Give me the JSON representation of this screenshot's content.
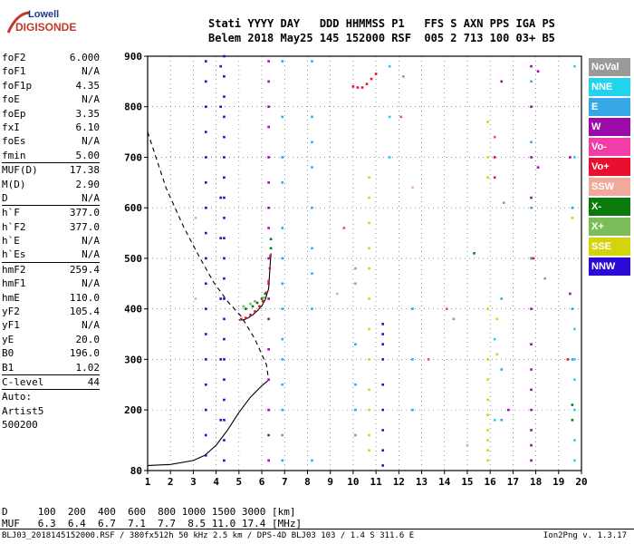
{
  "logo": {
    "line1": "Lowell",
    "line2": "DIGISONDE"
  },
  "header": {
    "line1": "Stati YYYY DAY   DDD HHMMSS P1   FFS S AXN PPS IGA PS",
    "line2": "Belem 2018 May25 145 152000 RSF  005 2 713 100 03+ B5"
  },
  "params": [
    {
      "k": "foF2",
      "v": "6.000"
    },
    {
      "k": "foF1",
      "v": "N/A"
    },
    {
      "k": "foF1p",
      "v": "4.35"
    },
    {
      "k": "foE",
      "v": "N/A"
    },
    {
      "k": "foEp",
      "v": "3.35"
    },
    {
      "k": "fxI",
      "v": "6.10"
    },
    {
      "k": "foEs",
      "v": "N/A"
    },
    {
      "k": "fmin",
      "v": "5.00"
    },
    {
      "k": "MUF(D)",
      "v": "17.38",
      "sep": true
    },
    {
      "k": "M(D)",
      "v": "2.90"
    },
    {
      "k": "D",
      "v": "N/A"
    },
    {
      "k": "h`F",
      "v": "377.0",
      "sep": true
    },
    {
      "k": "h`F2",
      "v": "377.0"
    },
    {
      "k": "h`E",
      "v": "N/A"
    },
    {
      "k": "h`Es",
      "v": "N/A"
    },
    {
      "k": "hmF2",
      "v": "259.4",
      "sep": true
    },
    {
      "k": "hmF1",
      "v": "N/A"
    },
    {
      "k": "hmE",
      "v": "110.0"
    },
    {
      "k": "yF2",
      "v": "105.4"
    },
    {
      "k": "yF1",
      "v": "N/A"
    },
    {
      "k": "yE",
      "v": "20.0"
    },
    {
      "k": "B0",
      "v": "196.0"
    },
    {
      "k": "B1",
      "v": "1.02"
    },
    {
      "k": "C-level",
      "v": "44",
      "sep": true
    },
    {
      "k": "Auto:",
      "v": "",
      "sep": true
    },
    {
      "k": "Artist5",
      "v": ""
    },
    {
      "k": "500200",
      "v": ""
    }
  ],
  "legend": [
    {
      "label": "NoVal",
      "color": "#9a9a9a"
    },
    {
      "label": "NNE",
      "color": "#22d3ee"
    },
    {
      "label": "E",
      "color": "#38a7e6"
    },
    {
      "label": "W",
      "color": "#9c0aa8"
    },
    {
      "label": "Vo-",
      "color": "#f23ca8"
    },
    {
      "label": "Vo+",
      "color": "#e8102e"
    },
    {
      "label": "SSW",
      "color": "#f2a89a"
    },
    {
      "label": "X-",
      "color": "#0a7a0a"
    },
    {
      "label": "X+",
      "color": "#7cbd5a"
    },
    {
      "label": "SSE",
      "color": "#d4d40a"
    },
    {
      "label": "NNW",
      "color": "#2a0ad4"
    }
  ],
  "footer": {
    "d_line": "D     100  200  400  600  800 1000 1500 3000 [km]",
    "muf_line": "MUF   6.3  6.4  6.7  7.1  7.7  8.5 11.0 17.4 [MHz]",
    "file": "BLJ03_2018145152000.RSF / 380fx512h 50 kHz 2.5 km / DPS-4D BLJ03 103 / 1.4 S 311.6 E",
    "version": "Ion2Png v. 1.3.17"
  },
  "chart_data": {
    "type": "scatter",
    "title": "",
    "xlabel": "",
    "ylabel": "",
    "xlim": [
      1,
      20
    ],
    "ylim": [
      80,
      900
    ],
    "xticks": [
      1,
      2,
      3,
      4,
      5,
      6,
      7,
      8,
      9,
      10,
      11,
      12,
      13,
      14,
      15,
      16,
      17,
      18,
      19,
      20
    ],
    "yticks": [
      80,
      200,
      300,
      400,
      500,
      600,
      700,
      800,
      900
    ],
    "grid": "dotted",
    "series": [
      {
        "name": "NNW",
        "color": "#2a0ad4",
        "points": [
          [
            3.55,
            890
          ],
          [
            3.55,
            850
          ],
          [
            3.55,
            800
          ],
          [
            3.55,
            750
          ],
          [
            3.55,
            700
          ],
          [
            3.55,
            650
          ],
          [
            3.55,
            600
          ],
          [
            3.55,
            550
          ],
          [
            3.55,
            500
          ],
          [
            3.55,
            450
          ],
          [
            3.55,
            400
          ],
          [
            3.55,
            350
          ],
          [
            3.55,
            300
          ],
          [
            3.55,
            250
          ],
          [
            3.55,
            200
          ],
          [
            3.55,
            150
          ],
          [
            3.55,
            110
          ],
          [
            4.35,
            900
          ],
          [
            4.35,
            860
          ],
          [
            4.35,
            820
          ],
          [
            4.35,
            780
          ],
          [
            4.35,
            740
          ],
          [
            4.35,
            700
          ],
          [
            4.35,
            660
          ],
          [
            4.35,
            620
          ],
          [
            4.35,
            580
          ],
          [
            4.35,
            540
          ],
          [
            4.35,
            500
          ],
          [
            4.35,
            460
          ],
          [
            4.35,
            420
          ],
          [
            4.35,
            380
          ],
          [
            4.35,
            340
          ],
          [
            4.35,
            300
          ],
          [
            4.35,
            260
          ],
          [
            4.35,
            220
          ],
          [
            4.35,
            180
          ],
          [
            4.35,
            140
          ],
          [
            4.35,
            100
          ],
          [
            4.2,
            880
          ],
          [
            4.2,
            800
          ],
          [
            4.2,
            620
          ],
          [
            4.2,
            540
          ],
          [
            4.2,
            420
          ],
          [
            4.2,
            300
          ],
          [
            4.2,
            180
          ],
          [
            11.3,
            370
          ],
          [
            11.3,
            350
          ],
          [
            11.3,
            330
          ],
          [
            11.3,
            300
          ],
          [
            11.3,
            250
          ],
          [
            11.3,
            200
          ],
          [
            11.3,
            160
          ],
          [
            11.3,
            120
          ],
          [
            11.3,
            90
          ]
        ]
      },
      {
        "name": "W",
        "color": "#9c0aa8",
        "points": [
          [
            6.3,
            890
          ],
          [
            6.3,
            850
          ],
          [
            6.3,
            800
          ],
          [
            6.3,
            760
          ],
          [
            6.3,
            700
          ],
          [
            6.3,
            650
          ],
          [
            6.3,
            600
          ],
          [
            6.3,
            560
          ],
          [
            6.3,
            500
          ],
          [
            6.3,
            450
          ],
          [
            6.3,
            420
          ],
          [
            6.3,
            380
          ],
          [
            6.3,
            320
          ],
          [
            6.3,
            260
          ],
          [
            6.3,
            200
          ],
          [
            6.3,
            150
          ],
          [
            6.3,
            100
          ],
          [
            17.8,
            880
          ],
          [
            17.8,
            800
          ],
          [
            17.8,
            700
          ],
          [
            17.8,
            620
          ],
          [
            17.8,
            500
          ],
          [
            17.8,
            400
          ],
          [
            17.8,
            330
          ],
          [
            17.8,
            280
          ],
          [
            17.8,
            240
          ],
          [
            17.8,
            200
          ],
          [
            17.8,
            160
          ],
          [
            17.8,
            130
          ],
          [
            17.8,
            100
          ],
          [
            18.1,
            870
          ],
          [
            18.1,
            680
          ],
          [
            19.5,
            700
          ],
          [
            19.5,
            430
          ],
          [
            16.5,
            850
          ],
          [
            16.8,
            200
          ]
        ]
      },
      {
        "name": "E",
        "color": "#38a7e6",
        "points": [
          [
            6.9,
            890
          ],
          [
            6.9,
            780
          ],
          [
            6.9,
            700
          ],
          [
            6.9,
            650
          ],
          [
            6.9,
            560
          ],
          [
            6.9,
            500
          ],
          [
            6.9,
            450
          ],
          [
            6.9,
            400
          ],
          [
            6.9,
            340
          ],
          [
            6.9,
            300
          ],
          [
            6.9,
            250
          ],
          [
            6.9,
            200
          ],
          [
            6.9,
            150
          ],
          [
            6.9,
            100
          ],
          [
            8.2,
            890
          ],
          [
            8.2,
            780
          ],
          [
            8.2,
            730
          ],
          [
            8.2,
            680
          ],
          [
            8.2,
            600
          ],
          [
            8.2,
            520
          ],
          [
            8.2,
            470
          ],
          [
            8.2,
            400
          ],
          [
            8.2,
            100
          ],
          [
            10.1,
            330
          ],
          [
            10.1,
            250
          ],
          [
            10.1,
            200
          ],
          [
            10.1,
            150
          ],
          [
            12.6,
            400
          ],
          [
            12.6,
            300
          ],
          [
            12.6,
            200
          ],
          [
            16.5,
            420
          ],
          [
            16.5,
            280
          ],
          [
            16.5,
            180
          ],
          [
            17.8,
            850
          ],
          [
            17.8,
            730
          ],
          [
            17.8,
            600
          ],
          [
            17.8,
            500
          ],
          [
            19.6,
            600
          ],
          [
            19.6,
            400
          ],
          [
            19.6,
            300
          ]
        ]
      },
      {
        "name": "NNE",
        "color": "#22d3ee",
        "points": [
          [
            19.7,
            880
          ],
          [
            19.7,
            700
          ],
          [
            19.7,
            360
          ],
          [
            19.7,
            300
          ],
          [
            19.7,
            260
          ],
          [
            19.7,
            200
          ],
          [
            19.7,
            140
          ],
          [
            19.7,
            100
          ],
          [
            11.6,
            880
          ],
          [
            11.6,
            780
          ],
          [
            11.6,
            700
          ],
          [
            16.2,
            340
          ],
          [
            16.2,
            180
          ]
        ]
      },
      {
        "name": "Vo+",
        "color": "#e8102e",
        "points": [
          [
            5.1,
            380
          ],
          [
            5.3,
            382
          ],
          [
            5.5,
            388
          ],
          [
            5.7,
            395
          ],
          [
            5.9,
            405
          ],
          [
            6.05,
            415
          ],
          [
            6.2,
            432
          ],
          [
            6.3,
            455
          ],
          [
            6.35,
            480
          ],
          [
            6.38,
            505
          ],
          [
            10.0,
            840
          ],
          [
            10.2,
            838
          ],
          [
            10.4,
            838
          ],
          [
            10.6,
            845
          ],
          [
            10.8,
            855
          ],
          [
            11.0,
            865
          ],
          [
            16.2,
            700
          ],
          [
            16.2,
            660
          ],
          [
            17.9,
            500
          ],
          [
            19.4,
            300
          ]
        ]
      },
      {
        "name": "X-",
        "color": "#0a7a0a",
        "points": [
          [
            5.3,
            400
          ],
          [
            5.6,
            405
          ],
          [
            5.8,
            412
          ],
          [
            6.0,
            420
          ],
          [
            6.15,
            430
          ],
          [
            6.4,
            538
          ],
          [
            6.4,
            520
          ],
          [
            15.3,
            510
          ],
          [
            19.6,
            180
          ],
          [
            19.6,
            210
          ]
        ]
      },
      {
        "name": "X+",
        "color": "#7cbd5a",
        "points": [
          [
            5.2,
            405
          ],
          [
            5.5,
            410
          ],
          [
            5.7,
            415
          ],
          [
            6.1,
            422
          ],
          [
            10.1,
            480
          ],
          [
            10.1,
            450
          ]
        ]
      },
      {
        "name": "SSE",
        "color": "#d4d40a",
        "points": [
          [
            10.7,
            660
          ],
          [
            10.7,
            620
          ],
          [
            10.7,
            570
          ],
          [
            10.7,
            520
          ],
          [
            10.7,
            480
          ],
          [
            10.7,
            420
          ],
          [
            10.7,
            360
          ],
          [
            10.7,
            300
          ],
          [
            10.7,
            240
          ],
          [
            10.7,
            200
          ],
          [
            10.7,
            150
          ],
          [
            10.7,
            120
          ],
          [
            15.9,
            770
          ],
          [
            15.9,
            700
          ],
          [
            15.9,
            660
          ],
          [
            15.9,
            400
          ],
          [
            15.9,
            300
          ],
          [
            15.9,
            260
          ],
          [
            15.9,
            220
          ],
          [
            15.9,
            190
          ],
          [
            15.9,
            160
          ],
          [
            15.9,
            140
          ],
          [
            15.9,
            120
          ],
          [
            15.9,
            100
          ],
          [
            16.3,
            380
          ],
          [
            16.3,
            310
          ],
          [
            19.6,
            580
          ]
        ]
      },
      {
        "name": "Vo-",
        "color": "#f23ca8",
        "points": [
          [
            14.1,
            400
          ],
          [
            16.2,
            740
          ],
          [
            12.1,
            780
          ],
          [
            9.6,
            560
          ],
          [
            13.3,
            300
          ]
        ]
      },
      {
        "name": "SSW",
        "color": "#f2a89a",
        "points": [
          [
            3.1,
            420
          ],
          [
            3.1,
            580
          ],
          [
            12.6,
            640
          ],
          [
            9.3,
            430
          ],
          [
            15.0,
            130
          ]
        ]
      },
      {
        "name": "NoVal",
        "color": "#9a9a9a",
        "points": [
          [
            12.2,
            860
          ],
          [
            14.4,
            380
          ],
          [
            16.6,
            610
          ],
          [
            18.4,
            460
          ]
        ]
      }
    ],
    "curves": [
      {
        "name": "profile-upper",
        "style": "dashed",
        "x": [
          1.0,
          1.8,
          2.6,
          3.3,
          3.9,
          4.5,
          5.1,
          5.7,
          6.2,
          6.3
        ],
        "y": [
          750,
          640,
          560,
          500,
          452,
          415,
          385,
          340,
          290,
          259
        ]
      },
      {
        "name": "profile-lower",
        "style": "solid",
        "x": [
          1.0,
          2.0,
          3.0,
          3.5,
          4.0,
          4.5,
          5.0,
          5.5,
          6.0,
          6.3
        ],
        "y": [
          90,
          92,
          100,
          110,
          130,
          160,
          195,
          225,
          248,
          259
        ]
      },
      {
        "name": "trace",
        "style": "solid",
        "x": [
          5.0,
          5.2,
          5.4,
          5.6,
          5.8,
          6.0,
          6.15,
          6.3,
          6.4
        ],
        "y": [
          378,
          378,
          382,
          388,
          396,
          406,
          418,
          440,
          510
        ]
      }
    ]
  }
}
